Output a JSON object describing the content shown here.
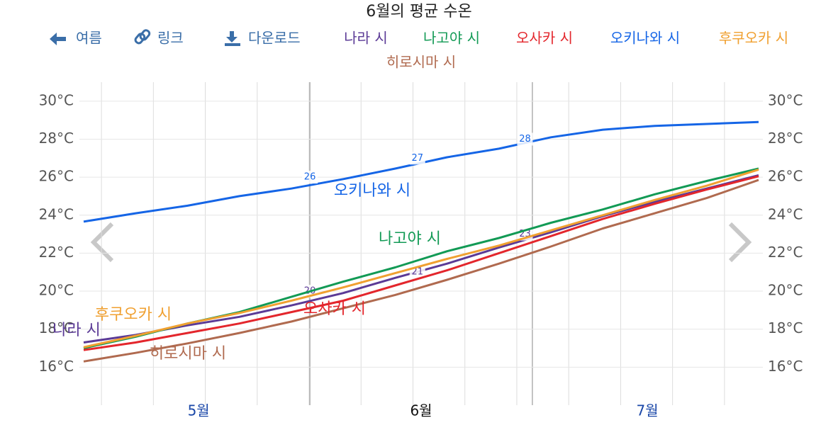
{
  "toolbar": [
    "여름",
    "링크",
    "다운로드"
  ],
  "chart_data": {
    "type": "line",
    "title": "6월의 평균 수온",
    "x": [
      0,
      7,
      14,
      21,
      28,
      35,
      42,
      49,
      56,
      63,
      70,
      77,
      84,
      91
    ],
    "xlim": [
      0,
      91
    ],
    "xticks": [
      {
        "value": 15.5,
        "label": "5월"
      },
      {
        "value": 45.5,
        "label": "6월"
      },
      {
        "value": 76,
        "label": "7월"
      }
    ],
    "highlight_range": [
      30.5,
      60.5
    ],
    "ylim": [
      14,
      31
    ],
    "yticks": [
      {
        "value": 16,
        "label": "16°C"
      },
      {
        "value": 18,
        "label": "18°C"
      },
      {
        "value": 20,
        "label": "20°C"
      },
      {
        "value": 22,
        "label": "22°C"
      },
      {
        "value": 24,
        "label": "24°C"
      },
      {
        "value": 26,
        "label": "26°C"
      },
      {
        "value": 28,
        "label": "28°C"
      },
      {
        "value": 30,
        "label": "30°C"
      }
    ],
    "grid": true,
    "series": [
      {
        "name": "나라 시",
        "color": "#5b3a96",
        "values": [
          17.3,
          17.7,
          18.2,
          18.65,
          19.25,
          19.9,
          20.7,
          21.45,
          22.3,
          23.1,
          23.95,
          24.7,
          25.4,
          26.1
        ],
        "markers": [
          {
            "x": 30.5,
            "y": 20
          },
          {
            "x": 45,
            "y": 21
          },
          {
            "x": 59.5,
            "y": 23
          }
        ]
      },
      {
        "name": "나고야 시",
        "color": "#129a55",
        "values": [
          17.0,
          17.6,
          18.3,
          18.9,
          19.7,
          20.5,
          21.25,
          22.1,
          22.8,
          23.6,
          24.3,
          25.1,
          25.8,
          26.45
        ]
      },
      {
        "name": "오사카 시",
        "color": "#e3262c",
        "values": [
          16.9,
          17.3,
          17.8,
          18.3,
          18.9,
          19.5,
          20.3,
          21.1,
          22.0,
          22.9,
          23.8,
          24.6,
          25.35,
          26.05
        ]
      },
      {
        "name": "오키나와 시",
        "color": "#1565e6",
        "values": [
          23.66,
          24.1,
          24.5,
          25.0,
          25.4,
          25.9,
          26.45,
          27.05,
          27.5,
          28.1,
          28.5,
          28.7,
          28.8,
          28.9
        ],
        "markers": [
          {
            "x": 30.5,
            "y": 26
          },
          {
            "x": 45,
            "y": 27
          },
          {
            "x": 59.5,
            "y": 28
          }
        ]
      },
      {
        "name": "후쿠오카 시",
        "color": "#f0a030",
        "values": [
          17.05,
          17.65,
          18.3,
          18.85,
          19.5,
          20.2,
          20.95,
          21.7,
          22.4,
          23.2,
          24.0,
          24.8,
          25.55,
          26.4
        ]
      },
      {
        "name": "히로시마 시",
        "color": "#b06a4f",
        "values": [
          16.3,
          16.75,
          17.25,
          17.8,
          18.4,
          19.1,
          19.8,
          20.6,
          21.45,
          22.35,
          23.3,
          24.1,
          24.9,
          25.85
        ]
      }
    ]
  }
}
